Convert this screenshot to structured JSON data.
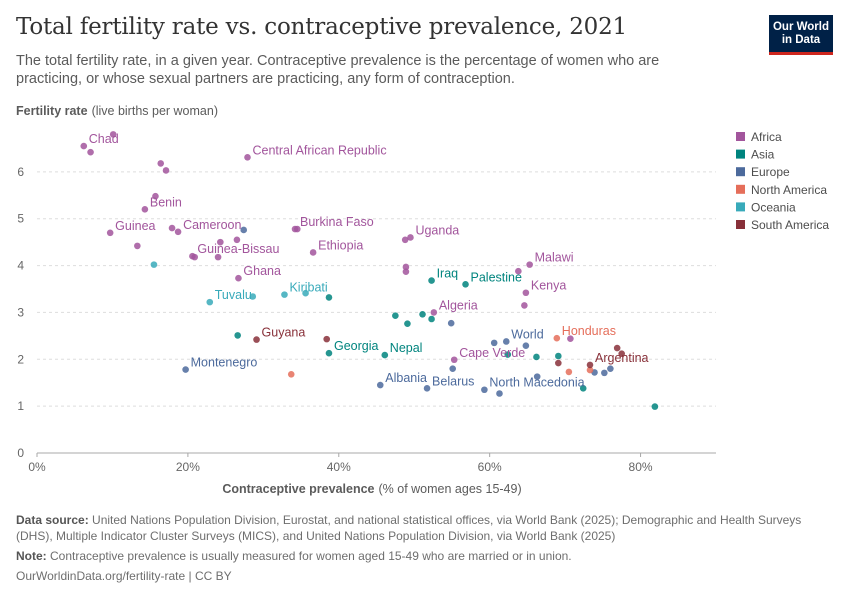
{
  "header": {
    "title": "Total fertility rate vs. contraceptive prevalence, 2021",
    "subtitle": "The total fertility rate, in a given year. Contraceptive prevalence is the percentage of women who are practicing, or whose sexual partners are practicing, any form of contraception.",
    "logo_line1": "Our World",
    "logo_line2": "in Data"
  },
  "footer": {
    "source_label": "Data source:",
    "source_text": "United Nations Population Division, Eurostat, and national statistical offices, via World Bank (2025); Demographic and Health Surveys (DHS), Multiple Indicator Cluster Surveys (MICS), and United Nations Population Division, via World Bank (2025)",
    "note_label": "Note:",
    "note_text": "Contraceptive prevalence is usually measured for women aged 15-49 who are married or in union.",
    "credit": "OurWorldinData.org/fertility-rate | CC BY"
  },
  "chart_data": {
    "type": "scatter",
    "y_axis_title": "Fertility rate",
    "y_axis_unit": "(live births per woman)",
    "x_axis_title": "Contraceptive prevalence",
    "x_axis_unit": "(% of women ages 15-49)",
    "xlim": [
      0,
      90
    ],
    "ylim": [
      0,
      7
    ],
    "x_ticks": [
      0,
      20,
      40,
      60,
      80
    ],
    "x_tick_labels": [
      "0%",
      "20%",
      "40%",
      "60%",
      "80%"
    ],
    "y_ticks": [
      0,
      1,
      2,
      3,
      4,
      5,
      6
    ],
    "y_tick_labels": [
      "0",
      "1",
      "2",
      "3",
      "4",
      "5",
      "6"
    ],
    "grid": "horizontal dashed",
    "legend_position": "right",
    "regions": [
      {
        "name": "Africa",
        "color": "#a2559c"
      },
      {
        "name": "Asia",
        "color": "#00847e"
      },
      {
        "name": "Europe",
        "color": "#4c6a9c"
      },
      {
        "name": "North America",
        "color": "#e56e5a"
      },
      {
        "name": "Oceania",
        "color": "#38aaba"
      },
      {
        "name": "South America",
        "color": "#883039"
      }
    ],
    "points": [
      {
        "x": 6.2,
        "y": 6.55,
        "region": "Africa",
        "label": "Chad"
      },
      {
        "x": 7.1,
        "y": 6.42,
        "region": "Africa"
      },
      {
        "x": 10.1,
        "y": 6.8,
        "region": "Africa"
      },
      {
        "x": 16.4,
        "y": 6.18,
        "region": "Africa"
      },
      {
        "x": 17.1,
        "y": 6.03,
        "region": "Africa"
      },
      {
        "x": 27.9,
        "y": 6.31,
        "region": "Africa",
        "label": "Central African Republic"
      },
      {
        "x": 15.7,
        "y": 5.48,
        "region": "Africa"
      },
      {
        "x": 14.3,
        "y": 5.2,
        "region": "Africa",
        "label": "Benin"
      },
      {
        "x": 9.7,
        "y": 4.7,
        "region": "Africa",
        "label": "Guinea"
      },
      {
        "x": 13.3,
        "y": 4.42,
        "region": "Africa"
      },
      {
        "x": 17.9,
        "y": 4.8,
        "region": "Africa"
      },
      {
        "x": 18.7,
        "y": 4.72,
        "region": "Africa",
        "label": "Cameroon"
      },
      {
        "x": 20.6,
        "y": 4.2,
        "region": "Africa",
        "label": "Guinea-Bissau"
      },
      {
        "x": 20.9,
        "y": 4.18,
        "region": "Africa"
      },
      {
        "x": 24.3,
        "y": 4.5,
        "region": "Africa"
      },
      {
        "x": 24.0,
        "y": 4.18,
        "region": "Africa"
      },
      {
        "x": 26.5,
        "y": 4.55,
        "region": "Africa"
      },
      {
        "x": 26.7,
        "y": 3.73,
        "region": "Africa",
        "label": "Ghana"
      },
      {
        "x": 34.2,
        "y": 4.78,
        "region": "Africa",
        "label": "Burkina Faso"
      },
      {
        "x": 34.5,
        "y": 4.78,
        "region": "Africa"
      },
      {
        "x": 36.6,
        "y": 4.28,
        "region": "Africa",
        "label": "Ethiopia"
      },
      {
        "x": 48.8,
        "y": 4.55,
        "region": "Africa"
      },
      {
        "x": 49.5,
        "y": 4.6,
        "region": "Africa",
        "label": "Uganda"
      },
      {
        "x": 48.9,
        "y": 3.97,
        "region": "Africa"
      },
      {
        "x": 48.9,
        "y": 3.87,
        "region": "Africa"
      },
      {
        "x": 52.6,
        "y": 3.0,
        "region": "Africa",
        "label": "Algeria"
      },
      {
        "x": 63.8,
        "y": 3.88,
        "region": "Africa"
      },
      {
        "x": 65.3,
        "y": 4.02,
        "region": "Africa",
        "label": "Malawi"
      },
      {
        "x": 64.8,
        "y": 3.42,
        "region": "Africa",
        "label": "Kenya"
      },
      {
        "x": 64.6,
        "y": 3.15,
        "region": "Africa"
      },
      {
        "x": 55.3,
        "y": 1.99,
        "region": "Africa",
        "label": "Cape Verde"
      },
      {
        "x": 70.7,
        "y": 2.44,
        "region": "Africa"
      },
      {
        "x": 15.5,
        "y": 4.02,
        "region": "Oceania"
      },
      {
        "x": 22.9,
        "y": 3.22,
        "region": "Oceania",
        "label": "Tuvalu"
      },
      {
        "x": 28.6,
        "y": 3.34,
        "region": "Oceania"
      },
      {
        "x": 32.8,
        "y": 3.38,
        "region": "Oceania",
        "label": "Kiribati"
      },
      {
        "x": 35.6,
        "y": 3.41,
        "region": "Oceania"
      },
      {
        "x": 26.6,
        "y": 2.51,
        "region": "Asia"
      },
      {
        "x": 38.7,
        "y": 3.32,
        "region": "Asia"
      },
      {
        "x": 38.7,
        "y": 2.13,
        "region": "Asia",
        "label": "Georgia"
      },
      {
        "x": 46.1,
        "y": 2.09,
        "region": "Asia",
        "label": "Nepal"
      },
      {
        "x": 47.5,
        "y": 2.93,
        "region": "Asia"
      },
      {
        "x": 49.1,
        "y": 2.76,
        "region": "Asia"
      },
      {
        "x": 51.1,
        "y": 2.96,
        "region": "Asia"
      },
      {
        "x": 52.3,
        "y": 3.68,
        "region": "Asia",
        "label": "Iraq"
      },
      {
        "x": 52.3,
        "y": 2.86,
        "region": "Asia"
      },
      {
        "x": 56.8,
        "y": 3.6,
        "region": "Asia",
        "label": "Palestine"
      },
      {
        "x": 62.4,
        "y": 2.1,
        "region": "Asia"
      },
      {
        "x": 66.2,
        "y": 2.05,
        "region": "Asia"
      },
      {
        "x": 69.1,
        "y": 2.07,
        "region": "Asia"
      },
      {
        "x": 72.4,
        "y": 1.38,
        "region": "Asia"
      },
      {
        "x": 81.9,
        "y": 0.99,
        "region": "Asia"
      },
      {
        "x": 19.7,
        "y": 1.78,
        "region": "Europe",
        "label": "Montenegro"
      },
      {
        "x": 27.4,
        "y": 4.76,
        "region": "Europe"
      },
      {
        "x": 45.5,
        "y": 1.45,
        "region": "Europe",
        "label": "Albania"
      },
      {
        "x": 51.7,
        "y": 1.38,
        "region": "Europe",
        "label": "Belarus"
      },
      {
        "x": 54.9,
        "y": 2.77,
        "region": "Europe"
      },
      {
        "x": 55.1,
        "y": 1.8,
        "region": "Europe"
      },
      {
        "x": 59.3,
        "y": 1.35,
        "region": "Europe",
        "label": "North Macedonia"
      },
      {
        "x": 61.3,
        "y": 1.27,
        "region": "Europe"
      },
      {
        "x": 60.6,
        "y": 2.35,
        "region": "Europe"
      },
      {
        "x": 62.2,
        "y": 2.38,
        "region": "Europe",
        "label": "World"
      },
      {
        "x": 64.8,
        "y": 2.29,
        "region": "Europe"
      },
      {
        "x": 66.3,
        "y": 1.63,
        "region": "Europe"
      },
      {
        "x": 73.9,
        "y": 1.72,
        "region": "Europe"
      },
      {
        "x": 75.2,
        "y": 1.71,
        "region": "Europe"
      },
      {
        "x": 76.0,
        "y": 1.8,
        "region": "Europe"
      },
      {
        "x": 33.7,
        "y": 1.68,
        "region": "North America"
      },
      {
        "x": 68.9,
        "y": 2.45,
        "region": "North America",
        "label": "Honduras"
      },
      {
        "x": 70.5,
        "y": 1.73,
        "region": "North America"
      },
      {
        "x": 73.3,
        "y": 1.77,
        "region": "North America"
      },
      {
        "x": 29.1,
        "y": 2.42,
        "region": "South America",
        "label": "Guyana"
      },
      {
        "x": 38.4,
        "y": 2.43,
        "region": "South America"
      },
      {
        "x": 69.1,
        "y": 1.92,
        "region": "South America"
      },
      {
        "x": 73.3,
        "y": 1.88,
        "region": "South America",
        "label": "Argentina"
      },
      {
        "x": 76.9,
        "y": 2.24,
        "region": "South America"
      },
      {
        "x": 77.5,
        "y": 2.12,
        "region": "South America"
      }
    ]
  }
}
